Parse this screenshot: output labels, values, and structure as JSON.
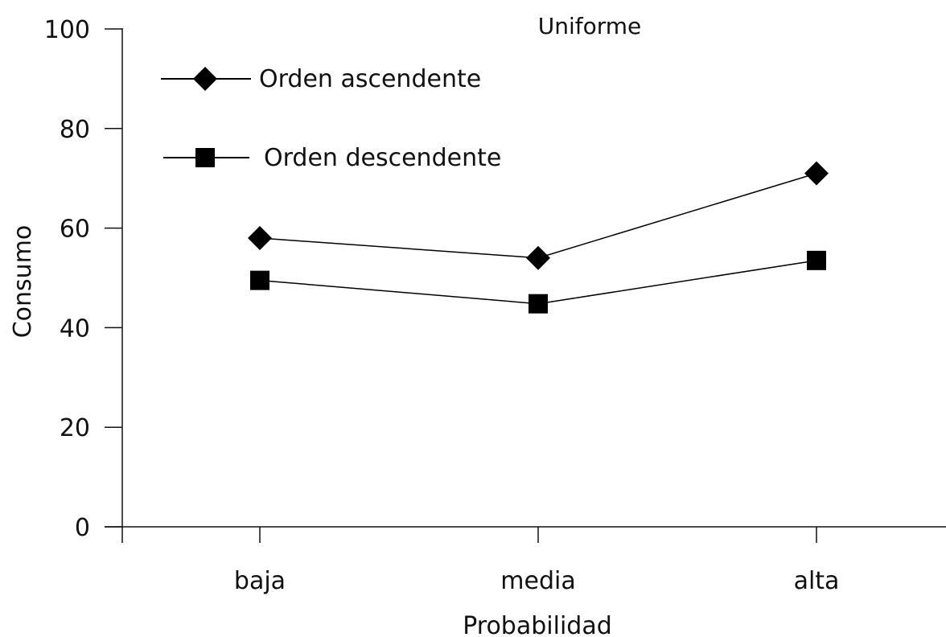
{
  "chart_data": {
    "type": "line",
    "title": "Uniforme",
    "xlabel": "Probabilidad",
    "ylabel": "Consumo",
    "categories": [
      "baja",
      "media",
      "alta"
    ],
    "ylim": [
      0,
      100
    ],
    "yticks": [
      0,
      20,
      40,
      60,
      80,
      100
    ],
    "grid": false,
    "legend_position": "top-left",
    "series": [
      {
        "name": "Orden ascendente",
        "marker": "diamond",
        "color": "#000000",
        "values": [
          58,
          54,
          71
        ]
      },
      {
        "name": "Orden descendente",
        "marker": "square",
        "color": "#000000",
        "values": [
          49.5,
          44.8,
          53.5
        ]
      }
    ]
  }
}
